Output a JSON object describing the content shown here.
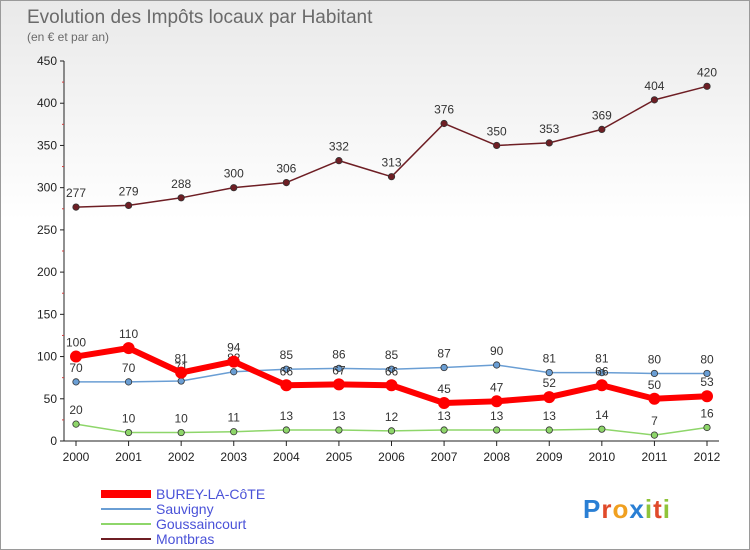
{
  "chart_data": {
    "type": "line",
    "title": "Evolution des Impôts locaux par Habitant",
    "subtitle": "(en € et par an)",
    "xlabel": "",
    "ylabel": "",
    "x": [
      "2000",
      "2001",
      "2002",
      "2003",
      "2004",
      "2005",
      "2006",
      "2007",
      "2008",
      "2009",
      "2010",
      "2011",
      "2012"
    ],
    "ylim": [
      0,
      450
    ],
    "yticks": [
      0,
      50,
      100,
      150,
      200,
      250,
      300,
      350,
      400,
      450
    ],
    "grid": false,
    "legend_position": "bottom-left",
    "series": [
      {
        "name": "Montbras",
        "color": "#6e1e24",
        "values": [
          277,
          279,
          288,
          300,
          306,
          332,
          313,
          376,
          350,
          353,
          369,
          404,
          420
        ]
      },
      {
        "name": "Sauvigny",
        "color": "#6a9ed4",
        "values": [
          70,
          70,
          71,
          82,
          85,
          86,
          85,
          87,
          90,
          81,
          81,
          80,
          80
        ]
      },
      {
        "name": "Goussaincourt",
        "color": "#8ed66a",
        "values": [
          20,
          10,
          10,
          11,
          13,
          13,
          12,
          13,
          13,
          13,
          14,
          7,
          16
        ]
      },
      {
        "name": "BUREY-LA-CôTE",
        "color": "#ff0000",
        "values": [
          100,
          110,
          81,
          94,
          66,
          67,
          66,
          45,
          47,
          52,
          66,
          50,
          53
        ]
      }
    ],
    "legend_order": [
      "BUREY-LA-CôTE",
      "Sauvigny",
      "Goussaincourt",
      "Montbras"
    ]
  },
  "logo": {
    "text": "Proxiti",
    "letters": [
      "P",
      "r",
      "o",
      "x",
      "i",
      "t",
      "i"
    ],
    "colors": [
      "#2a7fd4",
      "#e04a2a",
      "#f0a020",
      "#2a7fd4",
      "#8fc43a",
      "#e04a2a",
      "#8fc43a"
    ]
  }
}
